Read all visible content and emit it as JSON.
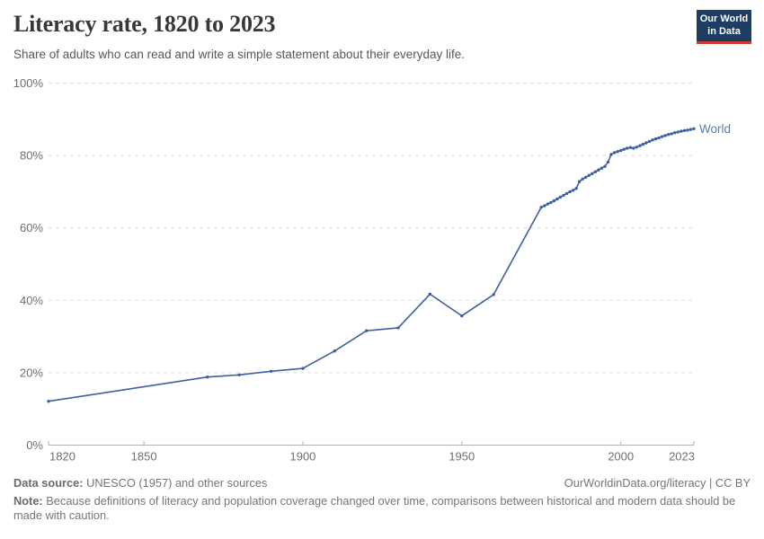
{
  "header": {
    "title": "Literacy rate, 1820 to 2023",
    "subtitle": "Share of adults who can read and write a simple statement about their everyday life.",
    "logo": {
      "line1": "Our World",
      "line2": "in Data",
      "bg_color": "#1d3d63",
      "accent_color": "#cf3a30"
    }
  },
  "chart_data": {
    "type": "line",
    "title": "Literacy rate, 1820 to 2023",
    "xlabel": "",
    "ylabel": "",
    "xlim": [
      1820,
      2023
    ],
    "ylim": [
      0,
      100
    ],
    "x_ticks": [
      1820,
      1850,
      1900,
      1950,
      2000,
      2023
    ],
    "y_ticks": [
      0,
      20,
      40,
      60,
      80,
      100
    ],
    "y_tick_suffix": "%",
    "grid": "horizontal-dashed",
    "legend_position": "line-end-label",
    "series": [
      {
        "name": "World",
        "color": "#3f609f",
        "label_color": "#5b7ab6",
        "points": [
          [
            1820,
            12.1
          ],
          [
            1870,
            18.8
          ],
          [
            1880,
            19.4
          ],
          [
            1890,
            20.4
          ],
          [
            1900,
            21.2
          ],
          [
            1910,
            26.0
          ],
          [
            1920,
            31.6
          ],
          [
            1930,
            32.4
          ],
          [
            1940,
            41.7
          ],
          [
            1950,
            35.7
          ],
          [
            1960,
            41.6
          ],
          [
            1975,
            65.7
          ],
          [
            1976,
            66.1
          ],
          [
            1977,
            66.6
          ],
          [
            1978,
            67.0
          ],
          [
            1979,
            67.5
          ],
          [
            1980,
            68.0
          ],
          [
            1981,
            68.5
          ],
          [
            1982,
            69.0
          ],
          [
            1983,
            69.5
          ],
          [
            1984,
            70.0
          ],
          [
            1985,
            70.4
          ],
          [
            1986,
            70.9
          ],
          [
            1987,
            72.8
          ],
          [
            1988,
            73.5
          ],
          [
            1989,
            74.0
          ],
          [
            1990,
            74.5
          ],
          [
            1991,
            75.0
          ],
          [
            1992,
            75.5
          ],
          [
            1993,
            76.0
          ],
          [
            1994,
            76.5
          ],
          [
            1995,
            77.0
          ],
          [
            1996,
            78.2
          ],
          [
            1997,
            80.3
          ],
          [
            1998,
            80.8
          ],
          [
            1999,
            81.1
          ],
          [
            2000,
            81.4
          ],
          [
            2001,
            81.7
          ],
          [
            2002,
            82.0
          ],
          [
            2003,
            82.2
          ],
          [
            2004,
            82.0
          ],
          [
            2005,
            82.3
          ],
          [
            2006,
            82.7
          ],
          [
            2007,
            83.1
          ],
          [
            2008,
            83.5
          ],
          [
            2009,
            83.9
          ],
          [
            2010,
            84.3
          ],
          [
            2011,
            84.6
          ],
          [
            2012,
            84.9
          ],
          [
            2013,
            85.2
          ],
          [
            2014,
            85.5
          ],
          [
            2015,
            85.8
          ],
          [
            2016,
            86.0
          ],
          [
            2017,
            86.3
          ],
          [
            2018,
            86.5
          ],
          [
            2019,
            86.7
          ],
          [
            2020,
            86.9
          ],
          [
            2021,
            87.0
          ],
          [
            2022,
            87.2
          ],
          [
            2023,
            87.4
          ]
        ]
      }
    ]
  },
  "footer": {
    "source_label": "Data source:",
    "source_text": "UNESCO (1957) and other sources",
    "link_text": "OurWorldinData.org/literacy | CC BY",
    "note_label": "Note:",
    "note_text": "Because definitions of literacy and population coverage changed over time, comparisons between historical and modern data should be made with caution."
  }
}
